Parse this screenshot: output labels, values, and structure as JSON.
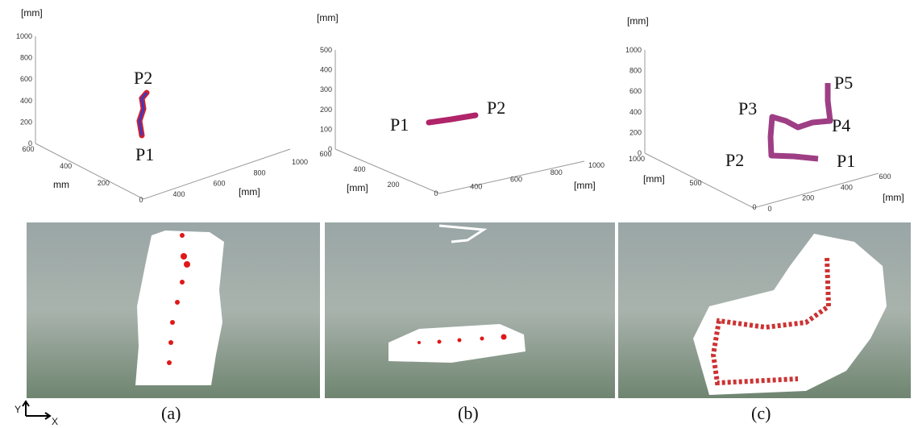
{
  "panels": [
    {
      "plot": {
        "z_label": "[mm]",
        "z_ticks": [
          0,
          200,
          400,
          600,
          800,
          1000
        ],
        "left_ticks": [
          600,
          400,
          200,
          0
        ],
        "left_label": "mm",
        "right_ticks": [
          400,
          600,
          800,
          1000
        ],
        "right_label": "[mm]",
        "points": [
          "P2",
          "P1"
        ]
      },
      "caption": "(a)"
    },
    {
      "plot": {
        "z_label": "[mm]",
        "z_ticks": [
          0,
          100,
          200,
          300,
          400,
          500
        ],
        "left_ticks": [
          600,
          400,
          200
        ],
        "left_label": "[mm]",
        "right_ticks": [
          0,
          400,
          600,
          800,
          1000
        ],
        "right_label": "[mm]",
        "points": [
          "P1",
          "P2"
        ]
      },
      "caption": "(b)"
    },
    {
      "plot": {
        "z_label": "[mm]",
        "z_ticks": [
          0,
          200,
          400,
          600,
          800,
          1000
        ],
        "left_ticks": [
          1000,
          500,
          0
        ],
        "left_label": "[mm]",
        "right_ticks": [
          0,
          200,
          400,
          600
        ],
        "right_label": "[mm]",
        "points": [
          "P3",
          "P5",
          "P4",
          "P2",
          "P1"
        ]
      },
      "caption": "(c)"
    }
  ],
  "axes_legend": {
    "y": "Y",
    "x": "X"
  }
}
